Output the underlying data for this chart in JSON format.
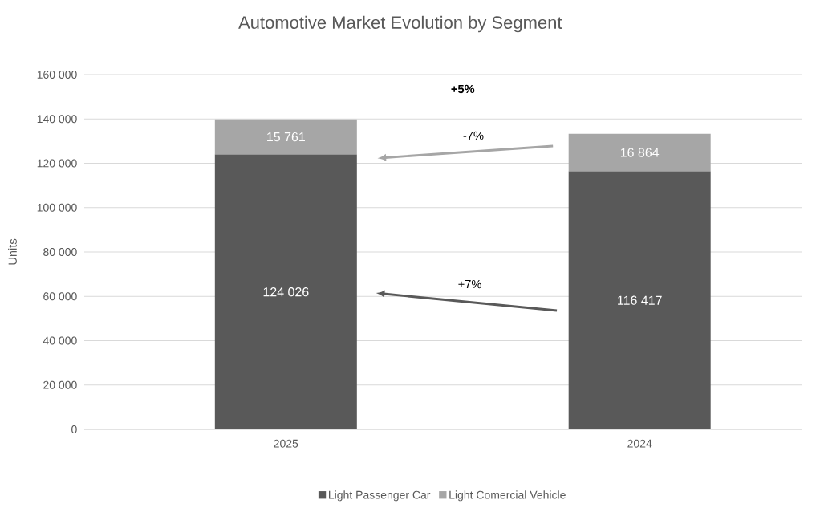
{
  "chart_data": {
    "type": "bar",
    "title": "Automotive Market Evolution by Segment",
    "ylabel": "Units",
    "categories": [
      "2025",
      "2024"
    ],
    "stacked": true,
    "series": [
      {
        "name": "Light Passenger Car",
        "color": "#595959",
        "values": [
          124026,
          116417
        ],
        "value_labels": [
          "124 026",
          "116 417"
        ]
      },
      {
        "name": "Light Comercial Vehicle",
        "color": "#a6a6a6",
        "values": [
          15761,
          16864
        ],
        "value_labels": [
          "15 761",
          "16 864"
        ]
      }
    ],
    "ylim": [
      0,
      160000
    ],
    "yticks": [
      {
        "value": 0,
        "label": "0"
      },
      {
        "value": 20000,
        "label": "20 000"
      },
      {
        "value": 40000,
        "label": "40 000"
      },
      {
        "value": 60000,
        "label": "60 000"
      },
      {
        "value": 80000,
        "label": "80 000"
      },
      {
        "value": 100000,
        "label": "100 000"
      },
      {
        "value": 120000,
        "label": "120 000"
      },
      {
        "value": 140000,
        "label": "140 000"
      },
      {
        "value": 160000,
        "label": "160 000"
      }
    ],
    "grid": "y",
    "legend": "bottom",
    "annotations": [
      "+5%",
      "-7%",
      "+7%"
    ]
  }
}
